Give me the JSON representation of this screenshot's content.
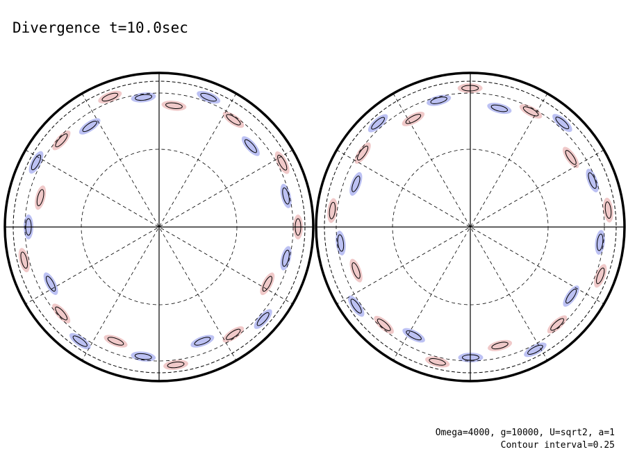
{
  "chart_data": {
    "type": "contour",
    "title": "Divergence t=10.0sec",
    "annotations": [
      "Omega=4000, g=10000, U=sqrt2, a=1",
      "Contour interval=0.25"
    ]
  }
}
